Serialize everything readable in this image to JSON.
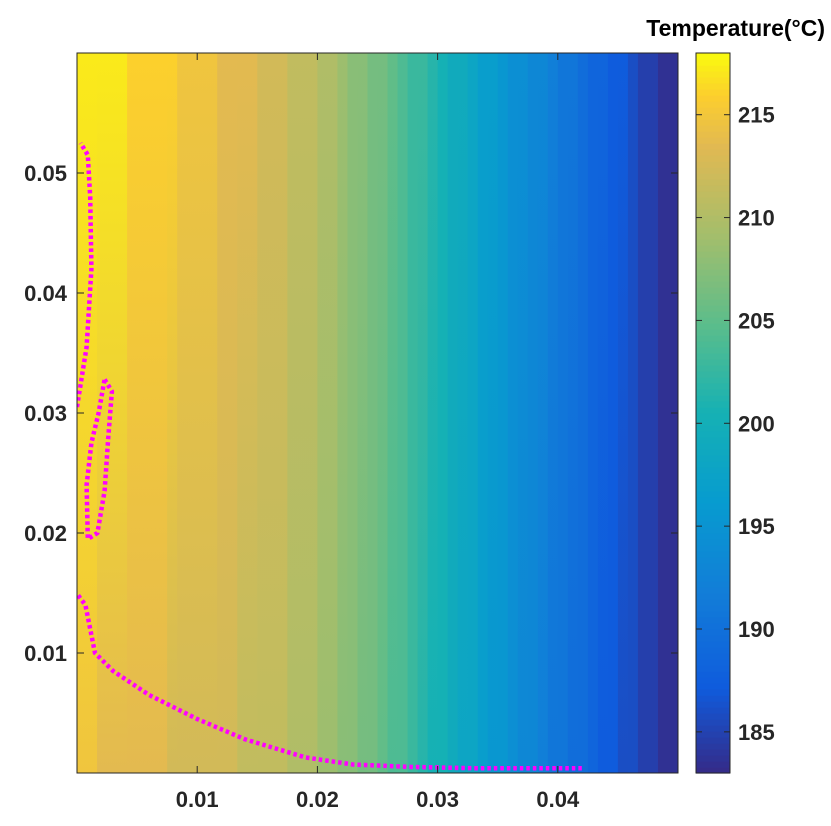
{
  "chart_data": {
    "type": "heatmap",
    "title": "",
    "xlabel": "",
    "ylabel": "",
    "xlim": [
      0,
      0.05
    ],
    "ylim": [
      0,
      0.06
    ],
    "x_ticks": [
      0.01,
      0.02,
      0.03,
      0.04
    ],
    "x_tick_labels": [
      "0.01",
      "0.02",
      "0.03",
      "0.04"
    ],
    "y_ticks": [
      0.01,
      0.02,
      0.03,
      0.04,
      0.05
    ],
    "y_tick_labels": [
      "0.01",
      "0.02",
      "0.03",
      "0.04",
      "0.05"
    ],
    "colormap": "parula",
    "colorbar": {
      "title": "Temperature(°C)",
      "range": [
        183,
        218
      ],
      "ticks": [
        185,
        190,
        195,
        200,
        205,
        210,
        215
      ],
      "tick_labels": [
        "185",
        "190",
        "195",
        "200",
        "205",
        "210",
        "215"
      ]
    },
    "temperature_profile": {
      "description_x": [
        0,
        0.005,
        0.01,
        0.015,
        0.02,
        0.025,
        0.03,
        0.035,
        0.04,
        0.045,
        0.05
      ],
      "values_top": [
        217.5,
        216.5,
        215,
        213,
        210.5,
        206.5,
        201,
        196,
        191.5,
        187,
        183
      ],
      "values_bottom": [
        214.5,
        213.5,
        212.5,
        211.5,
        209.5,
        205.5,
        200.5,
        195.5,
        191,
        186.5,
        183
      ]
    },
    "series": [
      {
        "style": "dotted",
        "color": "#ff00ff",
        "points": [
          [
            0.0001,
            0.0148
          ],
          [
            0.0007,
            0.014
          ],
          [
            0.0015,
            0.01
          ],
          [
            0.003,
            0.0085
          ],
          [
            0.006,
            0.0065
          ],
          [
            0.01,
            0.0045
          ],
          [
            0.014,
            0.0028
          ],
          [
            0.019,
            0.0013
          ],
          [
            0.023,
            0.0007
          ],
          [
            0.028,
            0.0005
          ],
          [
            0.033,
            0.0004
          ],
          [
            0.042,
            0.0004
          ]
        ]
      },
      {
        "style": "dotted",
        "color": "#ff00ff",
        "points": [
          [
            0.0023,
            0.0328
          ],
          [
            0.0029,
            0.0318
          ],
          [
            0.0026,
            0.028
          ],
          [
            0.0023,
            0.0235
          ],
          [
            0.0017,
            0.02
          ],
          [
            0.0009,
            0.0195
          ],
          [
            0.0008,
            0.024
          ],
          [
            0.0012,
            0.0275
          ],
          [
            0.0018,
            0.03
          ],
          [
            0.0023,
            0.0328
          ]
        ]
      },
      {
        "style": "dotted",
        "color": "#ff00ff",
        "points": [
          [
            0.0,
            0.0305
          ],
          [
            0.0008,
            0.0355
          ],
          [
            0.0012,
            0.042
          ],
          [
            0.0011,
            0.048
          ],
          [
            0.0009,
            0.0515
          ],
          [
            0.0003,
            0.0525
          ]
        ]
      }
    ]
  }
}
